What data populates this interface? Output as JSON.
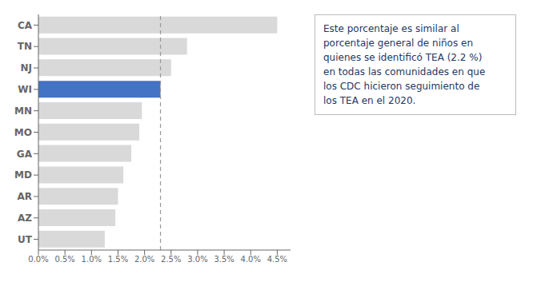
{
  "chart_data": {
    "type": "bar",
    "orientation": "horizontal",
    "categories": [
      "CA",
      "TN",
      "NJ",
      "WI",
      "MN",
      "MO",
      "GA",
      "MD",
      "AR",
      "AZ",
      "UT"
    ],
    "values": [
      4.5,
      2.8,
      2.5,
      2.3,
      1.95,
      1.9,
      1.75,
      1.6,
      1.5,
      1.45,
      1.25
    ],
    "colors": [
      "#d9d9d9",
      "#d9d9d9",
      "#d9d9d9",
      "#4472c4",
      "#d9d9d9",
      "#d9d9d9",
      "#d9d9d9",
      "#d9d9d9",
      "#d9d9d9",
      "#d9d9d9",
      "#d9d9d9"
    ],
    "xlim": [
      0.0,
      4.75
    ],
    "xticks": [
      {
        "value": 0.0,
        "label": "0.0%"
      },
      {
        "value": 0.5,
        "label": "0.5%"
      },
      {
        "value": 1.0,
        "label": "1.0%"
      },
      {
        "value": 1.5,
        "label": "1.5%"
      },
      {
        "value": 2.0,
        "label": "2.0%"
      },
      {
        "value": 2.5,
        "label": "2.5%"
      },
      {
        "value": 3.0,
        "label": "3.0%"
      },
      {
        "value": 3.5,
        "label": "3.5%"
      },
      {
        "value": 4.0,
        "label": "4.0%"
      },
      {
        "value": 4.5,
        "label": "4.5%"
      }
    ],
    "reference_line_x": 2.3,
    "annotation": {
      "text": "Este porcentaje es similar al\nporcentaje general de niños en\nquienes se identificó TEA (2.2 %)\nen todas las comunidades en que\nlos CDC hicieron seguimiento de\nlos TEA en el 2020.",
      "color": "#1f3864"
    },
    "grid": false
  }
}
